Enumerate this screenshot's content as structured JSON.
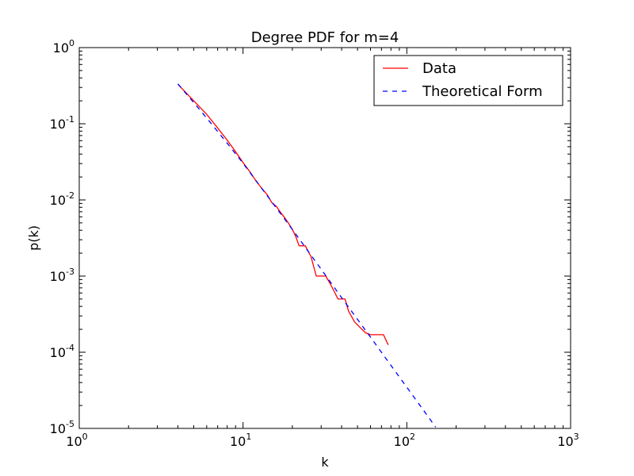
{
  "chart_data": {
    "type": "line",
    "title": "Degree PDF for m=4",
    "xlabel": "k",
    "ylabel": "p(k)",
    "x_scale": "log",
    "y_scale": "log",
    "xlim": [
      1,
      1000
    ],
    "ylim": [
      1e-05,
      1
    ],
    "x_ticks": [
      {
        "value": 1,
        "base": "10",
        "exp": "0"
      },
      {
        "value": 10,
        "base": "10",
        "exp": "1"
      },
      {
        "value": 100,
        "base": "10",
        "exp": "2"
      },
      {
        "value": 1000,
        "base": "10",
        "exp": "3"
      }
    ],
    "y_ticks": [
      {
        "value": 1,
        "base": "10",
        "exp": "0"
      },
      {
        "value": 0.1,
        "base": "10",
        "exp": "-1"
      },
      {
        "value": 0.01,
        "base": "10",
        "exp": "-2"
      },
      {
        "value": 0.001,
        "base": "10",
        "exp": "-3"
      },
      {
        "value": 0.0001,
        "base": "10",
        "exp": "-4"
      },
      {
        "value": 1e-05,
        "base": "10",
        "exp": "-5"
      }
    ],
    "grid": false,
    "legend_position": "top-right",
    "series": [
      {
        "name": "Data",
        "color": "#ff0000",
        "style": "solid",
        "x": [
          4,
          5,
          6,
          7,
          8,
          9,
          10,
          11,
          12,
          13,
          14,
          15,
          16,
          17,
          18,
          19,
          20,
          21,
          22,
          23,
          24,
          26,
          28,
          30,
          32,
          34,
          36,
          38,
          40,
          42,
          44,
          48,
          52,
          56,
          60,
          66,
          72,
          77
        ],
        "y": [
          0.33,
          0.2,
          0.133,
          0.088,
          0.061,
          0.043,
          0.031,
          0.0235,
          0.0178,
          0.0142,
          0.0118,
          0.0092,
          0.0082,
          0.0068,
          0.0058,
          0.0049,
          0.0041,
          0.0033,
          0.0025,
          0.0025,
          0.0025,
          0.0018,
          0.001,
          0.001,
          0.001,
          0.0008,
          0.00063,
          0.0005,
          0.0005,
          0.0005,
          0.00035,
          0.00025,
          0.00021,
          0.00018,
          0.00017,
          0.00017,
          0.00017,
          0.000125
        ]
      },
      {
        "name": "Theoretical Form",
        "color": "#0000ff",
        "style": "dashed",
        "x": [
          4,
          5,
          6,
          8,
          10,
          15,
          20,
          30,
          40,
          60,
          80,
          100,
          120,
          150
        ],
        "y": [
          0.333,
          0.19,
          0.119,
          0.0556,
          0.0303,
          0.0094,
          0.0041,
          0.00123,
          0.00052,
          0.000158,
          6.72e-05,
          3.47e-05,
          2.02e-05,
          1.04e-05
        ]
      }
    ]
  }
}
